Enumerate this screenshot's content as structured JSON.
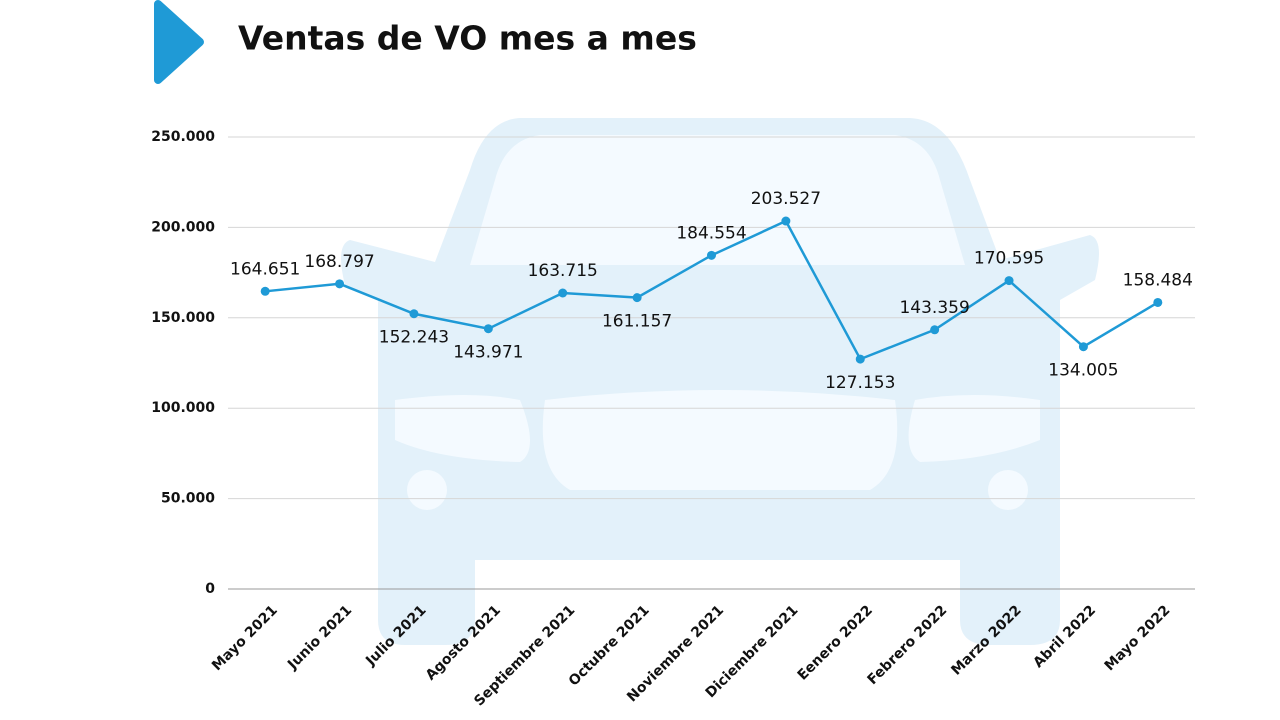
{
  "chart_data": {
    "type": "line",
    "title": "Ventas de VO mes a mes",
    "categories": [
      "Mayo 2021",
      "Junio 2021",
      "Julio 2021",
      "Agosto 2021",
      "Septiembre 2021",
      "Octubre 2021",
      "Noviembre 2021",
      "Diciembre 2021",
      "Eenero 2022",
      "Febrero 2022",
      "Marzo 2022",
      "Abril 2022",
      "Mayo 2022"
    ],
    "values": [
      164651,
      168797,
      152243,
      143971,
      163715,
      161157,
      184554,
      203527,
      127153,
      143359,
      170595,
      134005,
      158484
    ],
    "value_labels": [
      "164.651",
      "168.797",
      "152.243",
      "143.971",
      "163.715",
      "161.157",
      "184.554",
      "203.527",
      "127.153",
      "143.359",
      "170.595",
      "134.005",
      "158.484"
    ],
    "color": "#1f9ad6",
    "ylim": [
      0,
      250000
    ],
    "yticks": [
      0,
      {
        "value": 50000,
        "label": "50.000"
      },
      {
        "value": 100000,
        "label": "100.000"
      },
      {
        "value": 150000,
        "label": "150.000"
      },
      {
        "value": 200000,
        "label": "200.000"
      },
      {
        "value": 250000,
        "label": "250.000"
      }
    ],
    "grid": true
  }
}
